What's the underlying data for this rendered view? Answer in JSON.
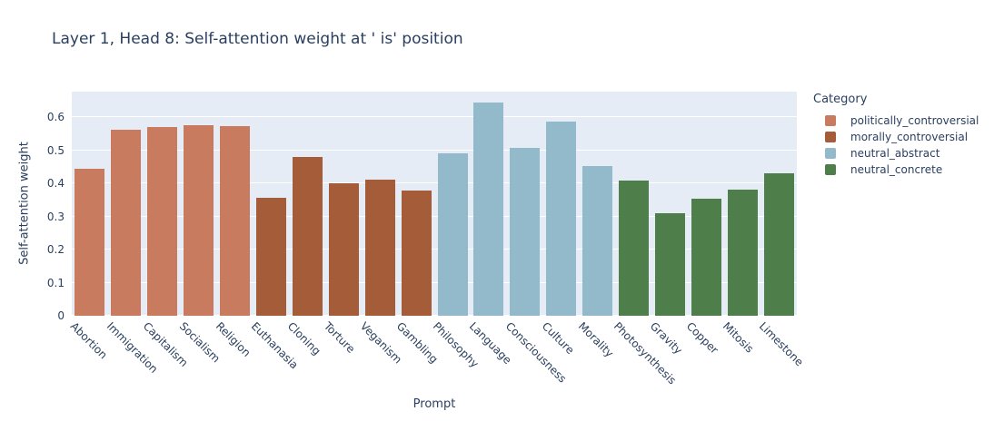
{
  "colors": {
    "text": "#2a3f5f",
    "plot_bg": "#e5ecf6",
    "grid": "#ffffff"
  },
  "chart_data": {
    "type": "bar",
    "title": "Layer 1, Head 8: Self-attention weight at ' is' position",
    "xlabel": "Prompt",
    "ylabel": "Self-attention weight",
    "legend_title": "Category",
    "legend_position": "right",
    "grid": true,
    "ylim": [
      0,
      0.677
    ],
    "yticks": [
      0,
      0.1,
      0.2,
      0.3,
      0.4,
      0.5,
      0.6
    ],
    "series": [
      {
        "name": "politically_controversial",
        "color": "#C97B5F",
        "categories": [
          "Abortion",
          "Immigration",
          "Capitalism",
          "Socialism",
          "Religion"
        ],
        "values": [
          0.445,
          0.563,
          0.569,
          0.577,
          0.572
        ]
      },
      {
        "name": "morally_controversial",
        "color": "#A55C38",
        "categories": [
          "Euthanasia",
          "Cloning",
          "Torture",
          "Veganism",
          "Gambling"
        ],
        "values": [
          0.355,
          0.481,
          0.399,
          0.41,
          0.378
        ]
      },
      {
        "name": "neutral_abstract",
        "color": "#92BACB",
        "categories": [
          "Philosophy",
          "Language",
          "Consciousness",
          "Culture",
          "Morality"
        ],
        "values": [
          0.49,
          0.643,
          0.508,
          0.586,
          0.451
        ]
      },
      {
        "name": "neutral_concrete",
        "color": "#4E7E4A",
        "categories": [
          "Photosynthesis",
          "Gravity",
          "Copper",
          "Mitosis",
          "Limestone"
        ],
        "values": [
          0.408,
          0.311,
          0.353,
          0.381,
          0.43
        ]
      }
    ]
  }
}
